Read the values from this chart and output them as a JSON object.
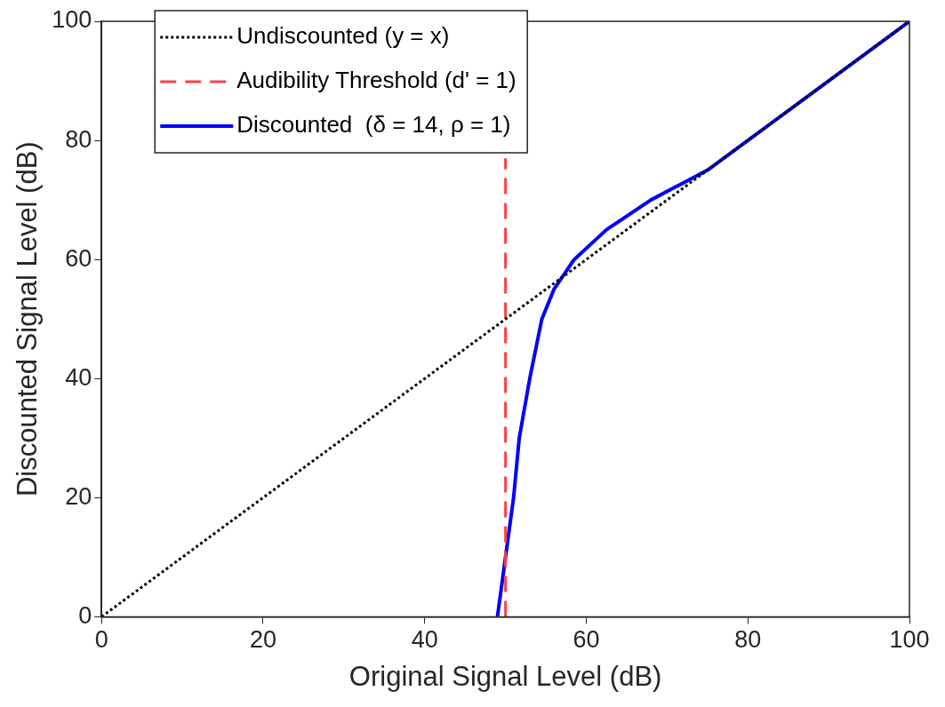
{
  "chart_data": {
    "type": "line",
    "xlabel": "Original Signal Level (dB)",
    "ylabel": "Discounted Signal Level (dB)",
    "xlim": [
      0,
      100
    ],
    "ylim": [
      0,
      100
    ],
    "xticks": [
      0,
      20,
      40,
      60,
      80,
      100
    ],
    "yticks": [
      0,
      20,
      40,
      60,
      80,
      100
    ],
    "grid": false,
    "legend": "top left",
    "marker": "none",
    "series": [
      {
        "name": "Undiscounted (y = x)",
        "color": "#000000",
        "line_style": "dotted",
        "x": [
          0,
          100
        ],
        "values": [
          0,
          100
        ]
      },
      {
        "name": "Audibility Threshold (d' = 1)",
        "color": "#ff4040",
        "line_style": "dashed",
        "x": [
          50,
          50
        ],
        "values": [
          0,
          77
        ]
      },
      {
        "name": "Discounted  (δ = 14, ρ = 1)",
        "color": "#0000ff",
        "line_style": "solid",
        "x": [
          49,
          49.5,
          50,
          50.5,
          51,
          51.7,
          53,
          54.5,
          56,
          58.5,
          62.5,
          68,
          75,
          80,
          100
        ],
        "values": [
          0,
          5,
          10,
          15,
          20,
          30,
          40,
          50,
          55,
          60,
          65,
          70,
          75,
          80,
          100
        ]
      }
    ]
  }
}
